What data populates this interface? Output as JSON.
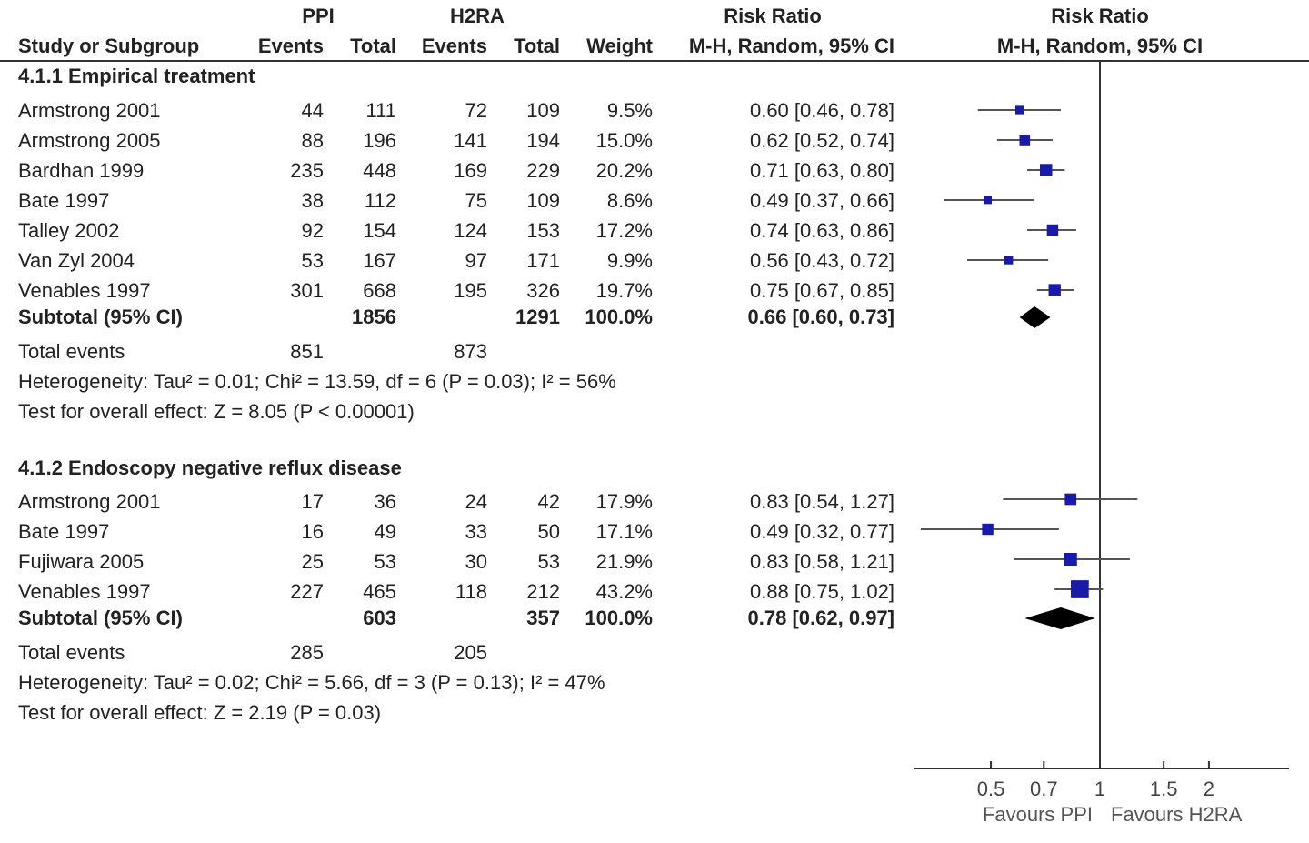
{
  "header": {
    "group1": "PPI",
    "group2": "H2RA",
    "rr_title": "Risk Ratio",
    "plot_title": "Risk Ratio",
    "col_study": "Study or Subgroup",
    "col_events1": "Events",
    "col_total1": "Total",
    "col_events2": "Events",
    "col_total2": "Total",
    "col_weight": "Weight",
    "col_ci": "M-H, Random, 95% CI",
    "plot_ci": "M-H, Random, 95% CI"
  },
  "chart_data": {
    "type": "forest",
    "x_scale": "log",
    "x_ticks": [
      0.5,
      0.7,
      1,
      1.5,
      2
    ],
    "x_tick_labels": [
      "0.5",
      "0.7",
      "1",
      "1.5",
      "2"
    ],
    "reference_line": 1,
    "favours_left": "Favours PPI",
    "favours_right": "Favours H2RA",
    "subgroups": [
      {
        "title": "4.1.1 Empirical treatment",
        "studies": [
          {
            "name": "Armstrong 2001",
            "e1": "44",
            "t1": "111",
            "e2": "72",
            "t2": "109",
            "weight": "9.5%",
            "ci_text": "0.60 [0.46, 0.78]",
            "rr": 0.6,
            "lo": 0.46,
            "hi": 0.78,
            "w": 9.5
          },
          {
            "name": "Armstrong 2005",
            "e1": "88",
            "t1": "196",
            "e2": "141",
            "t2": "194",
            "weight": "15.0%",
            "ci_text": "0.62 [0.52, 0.74]",
            "rr": 0.62,
            "lo": 0.52,
            "hi": 0.74,
            "w": 15.0
          },
          {
            "name": "Bardhan 1999",
            "e1": "235",
            "t1": "448",
            "e2": "169",
            "t2": "229",
            "weight": "20.2%",
            "ci_text": "0.71 [0.63, 0.80]",
            "rr": 0.71,
            "lo": 0.63,
            "hi": 0.8,
            "w": 20.2
          },
          {
            "name": "Bate 1997",
            "e1": "38",
            "t1": "112",
            "e2": "75",
            "t2": "109",
            "weight": "8.6%",
            "ci_text": "0.49 [0.37, 0.66]",
            "rr": 0.49,
            "lo": 0.37,
            "hi": 0.66,
            "w": 8.6
          },
          {
            "name": "Talley 2002",
            "e1": "92",
            "t1": "154",
            "e2": "124",
            "t2": "153",
            "weight": "17.2%",
            "ci_text": "0.74 [0.63, 0.86]",
            "rr": 0.74,
            "lo": 0.63,
            "hi": 0.86,
            "w": 17.2
          },
          {
            "name": "Van Zyl 2004",
            "e1": "53",
            "t1": "167",
            "e2": "97",
            "t2": "171",
            "weight": "9.9%",
            "ci_text": "0.56 [0.43, 0.72]",
            "rr": 0.56,
            "lo": 0.43,
            "hi": 0.72,
            "w": 9.9
          },
          {
            "name": "Venables 1997",
            "e1": "301",
            "t1": "668",
            "e2": "195",
            "t2": "326",
            "weight": "19.7%",
            "ci_text": "0.75 [0.67, 0.85]",
            "rr": 0.75,
            "lo": 0.67,
            "hi": 0.85,
            "w": 19.7
          }
        ],
        "subtotal": {
          "label": "Subtotal (95% CI)",
          "t1": "1856",
          "t2": "1291",
          "weight": "100.0%",
          "ci_text": "0.66 [0.60, 0.73]",
          "rr": 0.66,
          "lo": 0.6,
          "hi": 0.73
        },
        "total_events": {
          "label": "Total events",
          "e1": "851",
          "e2": "873"
        },
        "heterogeneity": "Heterogeneity: Tau² = 0.01; Chi² = 13.59, df = 6 (P = 0.03); I² = 56%",
        "overall": "Test for overall effect: Z = 8.05 (P < 0.00001)"
      },
      {
        "title": "4.1.2 Endoscopy negative reflux disease",
        "studies": [
          {
            "name": "Armstrong 2001",
            "e1": "17",
            "t1": "36",
            "e2": "24",
            "t2": "42",
            "weight": "17.9%",
            "ci_text": "0.83 [0.54, 1.27]",
            "rr": 0.83,
            "lo": 0.54,
            "hi": 1.27,
            "w": 17.9
          },
          {
            "name": "Bate 1997",
            "e1": "16",
            "t1": "49",
            "e2": "33",
            "t2": "50",
            "weight": "17.1%",
            "ci_text": "0.49 [0.32, 0.77]",
            "rr": 0.49,
            "lo": 0.32,
            "hi": 0.77,
            "w": 17.1
          },
          {
            "name": "Fujiwara 2005",
            "e1": "25",
            "t1": "53",
            "e2": "30",
            "t2": "53",
            "weight": "21.9%",
            "ci_text": "0.83 [0.58, 1.21]",
            "rr": 0.83,
            "lo": 0.58,
            "hi": 1.21,
            "w": 21.9
          },
          {
            "name": "Venables 1997",
            "e1": "227",
            "t1": "465",
            "e2": "118",
            "t2": "212",
            "weight": "43.2%",
            "ci_text": "0.88 [0.75, 1.02]",
            "rr": 0.88,
            "lo": 0.75,
            "hi": 1.02,
            "w": 43.2
          }
        ],
        "subtotal": {
          "label": "Subtotal (95% CI)",
          "t1": "603",
          "t2": "357",
          "weight": "100.0%",
          "ci_text": "0.78 [0.62, 0.97]",
          "rr": 0.78,
          "lo": 0.62,
          "hi": 0.97
        },
        "total_events": {
          "label": "Total events",
          "e1": "285",
          "e2": "205"
        },
        "heterogeneity": "Heterogeneity: Tau² = 0.02; Chi² = 5.66, df = 3 (P = 0.13); I² = 47%",
        "overall": "Test for overall effect: Z = 2.19 (P = 0.03)"
      }
    ]
  }
}
